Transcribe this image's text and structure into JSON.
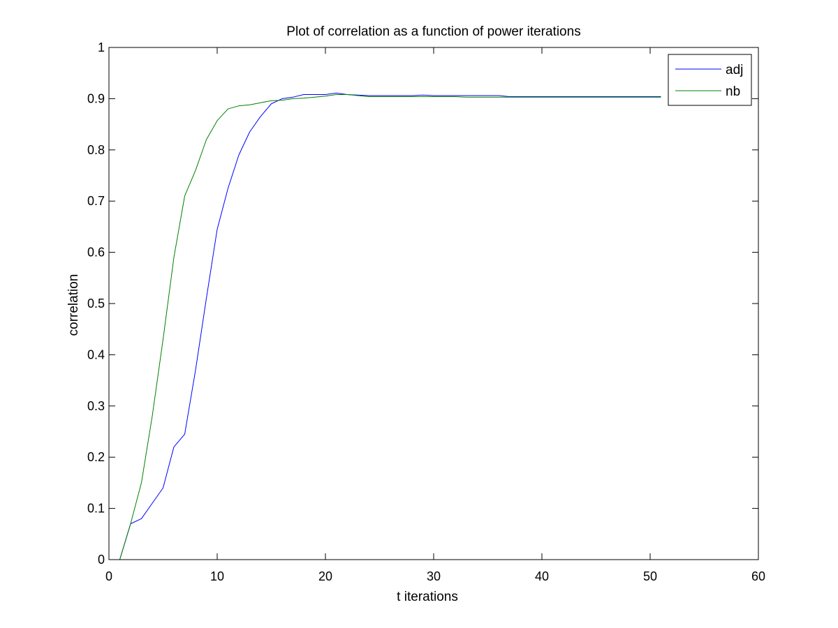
{
  "chart_data": {
    "type": "line",
    "title": "Plot of correlation as a function of power iterations",
    "xlabel": "t iterations",
    "ylabel": "correlation",
    "xlim": [
      0,
      60
    ],
    "ylim": [
      0,
      1
    ],
    "xticks": [
      0,
      10,
      20,
      30,
      40,
      50,
      60
    ],
    "yticks": [
      0,
      0.1,
      0.2,
      0.3,
      0.4,
      0.5,
      0.6,
      0.7,
      0.8,
      0.9,
      1
    ],
    "xtick_labels": [
      "0",
      "10",
      "20",
      "30",
      "40",
      "50",
      "60"
    ],
    "ytick_labels": [
      "0",
      "0.1",
      "0.2",
      "0.3",
      "0.4",
      "0.5",
      "0.6",
      "0.7",
      "0.8",
      "0.9",
      "1"
    ],
    "grid": false,
    "legend_position": "top-right",
    "x": [
      1,
      2,
      3,
      4,
      5,
      6,
      7,
      8,
      9,
      10,
      11,
      12,
      13,
      14,
      15,
      16,
      17,
      18,
      19,
      20,
      21,
      22,
      23,
      24,
      25,
      26,
      27,
      28,
      29,
      30,
      31,
      32,
      33,
      34,
      35,
      36,
      37,
      38,
      39,
      40,
      41,
      42,
      43,
      44,
      45,
      46,
      47,
      48,
      49,
      50,
      51
    ],
    "series": [
      {
        "name": "adj",
        "color": "#0000ff",
        "values": [
          0,
          0.07,
          0.08,
          0.11,
          0.14,
          0.22,
          0.245,
          0.37,
          0.51,
          0.645,
          0.725,
          0.79,
          0.835,
          0.865,
          0.89,
          0.9,
          0.903,
          0.908,
          0.908,
          0.908,
          0.911,
          0.908,
          0.907,
          0.906,
          0.906,
          0.906,
          0.906,
          0.906,
          0.907,
          0.906,
          0.906,
          0.906,
          0.906,
          0.906,
          0.906,
          0.906,
          0.904,
          0.904,
          0.904,
          0.904,
          0.904,
          0.904,
          0.904,
          0.904,
          0.904,
          0.904,
          0.904,
          0.904,
          0.904,
          0.904,
          0.904
        ]
      },
      {
        "name": "nb",
        "color": "#008000",
        "values": [
          0,
          0.07,
          0.15,
          0.28,
          0.43,
          0.59,
          0.71,
          0.76,
          0.82,
          0.857,
          0.88,
          0.886,
          0.888,
          0.892,
          0.896,
          0.897,
          0.9,
          0.901,
          0.903,
          0.905,
          0.908,
          0.908,
          0.906,
          0.904,
          0.904,
          0.904,
          0.904,
          0.904,
          0.904,
          0.904,
          0.904,
          0.904,
          0.903,
          0.903,
          0.903,
          0.903,
          0.903,
          0.903,
          0.903,
          0.903,
          0.903,
          0.903,
          0.903,
          0.903,
          0.903,
          0.903,
          0.903,
          0.903,
          0.903,
          0.903,
          0.903
        ]
      }
    ]
  }
}
